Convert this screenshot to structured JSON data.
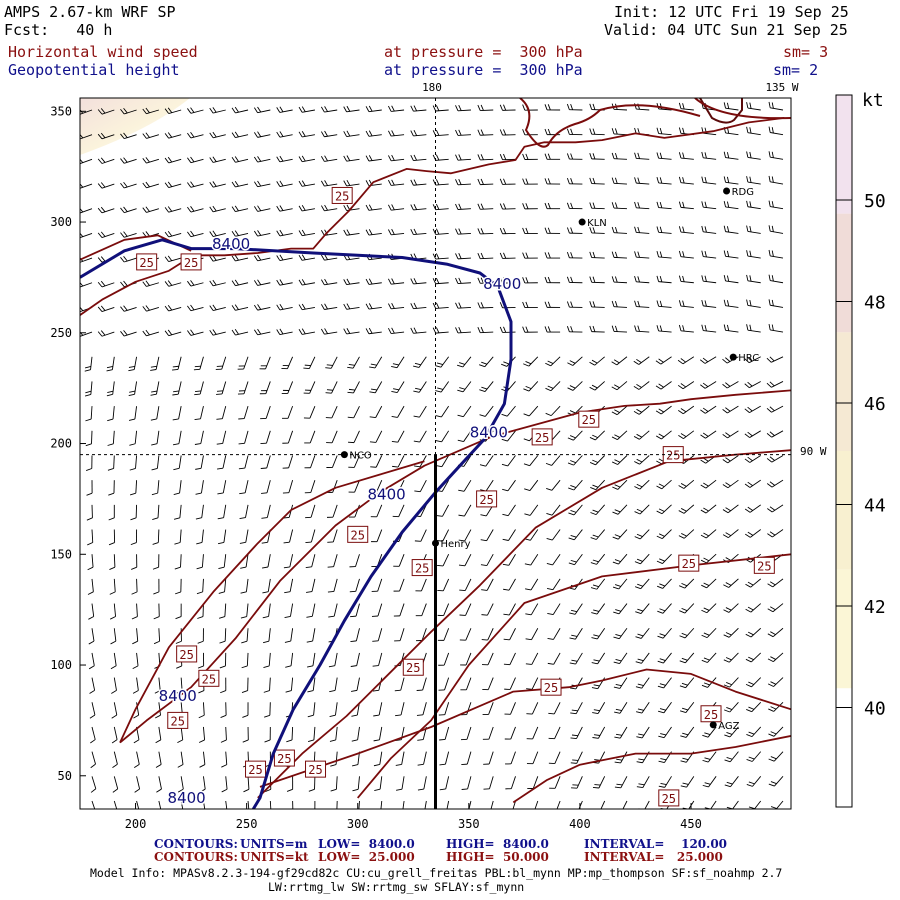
{
  "header": {
    "model": "AMPS 2.67-km WRF SP",
    "forecast": "Fcst:   40 h",
    "init": "Init: 12 UTC Fri 19 Sep 25",
    "valid": "Valid: 04 UTC Sun 21 Sep 25",
    "field1": "Horizontal wind speed",
    "field1_pressure": "at pressure =  300 hPa",
    "field1_smooth": "sm= 3",
    "field2": "Geopotential height",
    "field2_pressure": "at pressure =  300 hPa",
    "field2_smooth": "sm= 2"
  },
  "map_labels": {
    "meridian_180": "180",
    "meridian_135w": "135 W",
    "lat_90w": "90 W"
  },
  "stations": [
    {
      "name": "RDG",
      "x": 466,
      "y": 314
    },
    {
      "name": "KLN",
      "x": 401,
      "y": 300
    },
    {
      "name": "HRC",
      "x": 469,
      "y": 239
    },
    {
      "name": "NCO",
      "x": 294,
      "y": 195
    },
    {
      "name": "Henry",
      "x": 335,
      "y": 155
    },
    {
      "name": "AGZ",
      "x": 460,
      "y": 73
    }
  ],
  "chart_data": {
    "type": "map",
    "x_axis": {
      "min": 175,
      "max": 495,
      "ticks": [
        200,
        250,
        300,
        350,
        400,
        450
      ]
    },
    "y_axis": {
      "min": 35,
      "max": 356,
      "ticks": [
        50,
        100,
        150,
        200,
        250,
        300,
        350
      ]
    },
    "cross_lines": {
      "x": 335,
      "y": 195
    },
    "height_contours": {
      "units": "m",
      "value": "8400",
      "label_text": "8400",
      "lines": [
        [
          [
            175,
            275
          ],
          [
            195,
            287
          ],
          [
            212,
            292
          ],
          [
            225,
            288
          ],
          [
            245,
            288
          ],
          [
            280,
            286
          ],
          [
            300,
            285
          ],
          [
            320,
            284
          ],
          [
            340,
            281
          ],
          [
            355,
            277
          ],
          [
            363,
            271
          ],
          [
            369,
            255
          ],
          [
            369,
            238
          ],
          [
            366,
            218
          ],
          [
            357,
            202
          ],
          [
            346,
            190
          ],
          [
            335,
            178
          ],
          [
            320,
            160
          ],
          [
            306,
            140
          ],
          [
            294,
            120
          ],
          [
            283,
            100
          ],
          [
            271,
            80
          ],
          [
            262,
            60
          ],
          [
            256,
            40
          ],
          [
            253,
            35
          ]
        ]
      ],
      "labels": [
        [
          243,
          290
        ],
        [
          365,
          272
        ],
        [
          359,
          205
        ],
        [
          313,
          177
        ],
        [
          219,
          86
        ],
        [
          223,
          40
        ]
      ]
    },
    "speed_contours": {
      "units": "kt",
      "value": "25",
      "label_text": "25",
      "lines": [
        [
          [
            175,
            258
          ],
          [
            185,
            265
          ],
          [
            200,
            273
          ],
          [
            215,
            278
          ],
          [
            226,
            285
          ],
          [
            240,
            285
          ],
          [
            255,
            286
          ],
          [
            270,
            288
          ],
          [
            280,
            288
          ],
          [
            286,
            295
          ],
          [
            296,
            305
          ],
          [
            307,
            318
          ],
          [
            322,
            324
          ],
          [
            331,
            323
          ],
          [
            342,
            322
          ],
          [
            359,
            326
          ],
          [
            371,
            328
          ],
          [
            375,
            334
          ],
          [
            384,
            336
          ],
          [
            398,
            336
          ],
          [
            410,
            337
          ],
          [
            425,
            340
          ],
          [
            438,
            338
          ],
          [
            460,
            341
          ],
          [
            476,
            345
          ],
          [
            492,
            347
          ]
        ],
        [
          [
            175,
            283
          ],
          [
            195,
            292
          ],
          [
            210,
            294
          ],
          [
            225,
            287
          ]
        ],
        [
          [
            193,
            65
          ],
          [
            205,
            75
          ],
          [
            225,
            90
          ],
          [
            245,
            112
          ],
          [
            265,
            138
          ],
          [
            290,
            163
          ],
          [
            310,
            178
          ],
          [
            330,
            190
          ],
          [
            360,
            203
          ],
          [
            400,
            214
          ],
          [
            420,
            217
          ],
          [
            436,
            218
          ],
          [
            450,
            220
          ],
          [
            470,
            222
          ],
          [
            495,
            224
          ]
        ],
        [
          [
            193,
            65
          ],
          [
            200,
            80
          ],
          [
            215,
            108
          ],
          [
            235,
            133
          ],
          [
            255,
            155
          ],
          [
            270,
            170
          ],
          [
            290,
            180
          ],
          [
            310,
            186
          ],
          [
            330,
            192
          ]
        ],
        [
          [
            255,
            40
          ],
          [
            275,
            60
          ],
          [
            295,
            77
          ],
          [
            310,
            92
          ],
          [
            333,
            115
          ],
          [
            355,
            136
          ],
          [
            380,
            162
          ],
          [
            410,
            180
          ],
          [
            440,
            192
          ],
          [
            470,
            195
          ],
          [
            495,
            197
          ]
        ],
        [
          [
            256,
            45
          ],
          [
            300,
            60
          ],
          [
            333,
            72
          ],
          [
            370,
            88
          ],
          [
            395,
            90
          ],
          [
            410,
            93
          ],
          [
            430,
            98
          ],
          [
            450,
            96
          ],
          [
            470,
            88
          ],
          [
            495,
            80
          ]
        ],
        [
          [
            370,
            38
          ],
          [
            385,
            48
          ],
          [
            400,
            55
          ],
          [
            425,
            60
          ],
          [
            450,
            60
          ],
          [
            470,
            63
          ],
          [
            495,
            68
          ]
        ],
        [
          [
            300,
            40
          ],
          [
            315,
            58
          ],
          [
            333,
            75
          ],
          [
            350,
            100
          ],
          [
            375,
            128
          ],
          [
            410,
            140
          ],
          [
            450,
            145
          ],
          [
            495,
            150
          ]
        ]
      ],
      "labels": [
        [
          293,
          312
        ],
        [
          205,
          282
        ],
        [
          225,
          282
        ],
        [
          383,
          203
        ],
        [
          404,
          211
        ],
        [
          442,
          195
        ],
        [
          358,
          175
        ],
        [
          300,
          159
        ],
        [
          329,
          144
        ],
        [
          449,
          146
        ],
        [
          483,
          145
        ],
        [
          223,
          105
        ],
        [
          233,
          94
        ],
        [
          387,
          90
        ],
        [
          254,
          53
        ],
        [
          325,
          99
        ],
        [
          219,
          75
        ],
        [
          281,
          53
        ],
        [
          267,
          58
        ],
        [
          459,
          78
        ],
        [
          440,
          40
        ]
      ]
    },
    "wind_barbs": {
      "grid_nx": 32,
      "grid_ny": 29,
      "note": "Barb field: generally SW flow in west, W flow in north, NW in east"
    },
    "colorbar": {
      "units": "kt",
      "levels": [
        "50",
        "48",
        "46",
        "44",
        "42",
        "40"
      ],
      "colors": [
        "#f2e2ee",
        "#f0dcd8",
        "#f5e9d3",
        "#f8f0d0",
        "#fbf6d6",
        "#ffffff"
      ]
    }
  },
  "footer": {
    "row1_label": "CONTOURS:",
    "row1_units": "UNITS=m",
    "row1_low": "LOW=  8400.0",
    "row1_high": "HIGH=  8400.0",
    "row1_interval": "INTERVAL=    120.00",
    "row2_label": "CONTOURS:",
    "row2_units": "UNITS=kt",
    "row2_low": "LOW=  25.000",
    "row2_high": "HIGH=  50.000",
    "row2_interval": "INTERVAL=   25.000",
    "model_info_line1": "Model Info: MPASv8.2.3-194-gf29cd82c CU:cu_grell_freitas PBL:bl_mynn MP:mp_thompson SF:sf_noahmp 2.7",
    "model_info_line2": "LW:rrtmg_lw SW:rrtmg_sw SFLAY:sf_mynn"
  },
  "colors": {
    "height_contour": "#10107a",
    "speed_contour": "#7a0c0c",
    "header_red": "#8b1010",
    "header_blue": "#10108b"
  }
}
